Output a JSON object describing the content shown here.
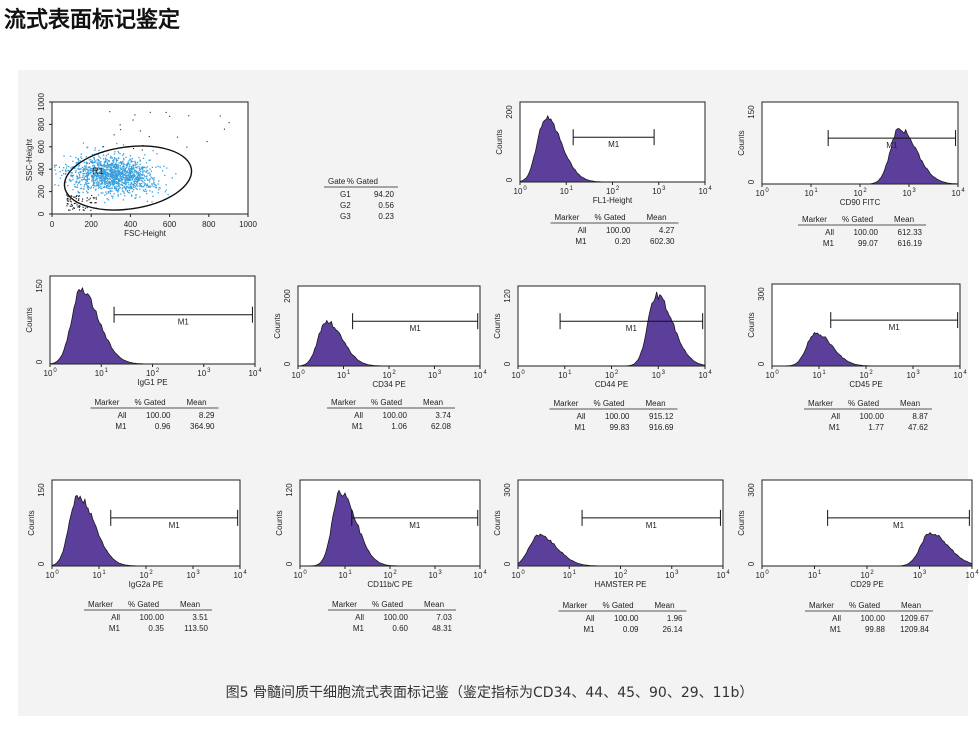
{
  "page": {
    "title": "流式表面标记鉴定",
    "caption": "图5 骨髓间质干细胞流式表面标记鉴（鉴定指标为CD34、44、45、90、29、11b）"
  },
  "colors": {
    "fill": "#5b3f9a",
    "outline": "#1a1a1a",
    "scatter": "#3aa0dd",
    "background": "#f3f3f4"
  },
  "scatter_panel": {
    "ylabel": "SSC-Height",
    "xlabel": "FSC-Height",
    "xticks": [
      "0",
      "200",
      "400",
      "600",
      "800",
      "1000"
    ],
    "yticks": [
      "0",
      "200",
      "400",
      "600",
      "800",
      "1000"
    ],
    "gate_label": "R1",
    "table": {
      "headers": [
        "Gate",
        "% Gated"
      ],
      "rows": [
        [
          "G1",
          "94.20"
        ],
        [
          "G2",
          "0.56"
        ],
        [
          "G3",
          "0.23"
        ]
      ]
    }
  },
  "histograms": [
    {
      "id": "fl1",
      "xlabel": "FL1-Height",
      "ylabel": "Counts",
      "ymax": "200",
      "peak": 0.55,
      "height": 0.88,
      "marker": "M1",
      "table": {
        "headers": [
          "Marker",
          "% Gated",
          "Mean"
        ],
        "rows": [
          [
            "All",
            "100.00",
            "4.27"
          ],
          [
            "M1",
            "0.20",
            "602.30"
          ]
        ]
      }
    },
    {
      "id": "cd90",
      "xlabel": "CD90 FITC",
      "ylabel": "Counts",
      "ymax": "150",
      "peak": 2.8,
      "height": 0.75,
      "marker": "M1",
      "table": {
        "headers": [
          "Marker",
          "% Gated",
          "Mean"
        ],
        "rows": [
          [
            "All",
            "100.00",
            "612.33"
          ],
          [
            "M1",
            "99.07",
            "616.19"
          ]
        ]
      }
    },
    {
      "id": "igg1",
      "xlabel": "IgG1 PE",
      "ylabel": "Counts",
      "ymax": "150",
      "peak": 0.6,
      "height": 0.92,
      "marker": "M1",
      "table": {
        "headers": [
          "Marker",
          "% Gated",
          "Mean"
        ],
        "rows": [
          [
            "All",
            "100.00",
            "8.29"
          ],
          [
            "M1",
            "0.96",
            "364.90"
          ]
        ]
      }
    },
    {
      "id": "cd34",
      "xlabel": "CD34 PE",
      "ylabel": "Counts",
      "ymax": "200",
      "peak": 0.62,
      "height": 0.62,
      "marker": "M1",
      "table": {
        "headers": [
          "Marker",
          "% Gated",
          "Mean"
        ],
        "rows": [
          [
            "All",
            "100.00",
            "3.74"
          ],
          [
            "M1",
            "1.06",
            "62.08"
          ]
        ]
      }
    },
    {
      "id": "cd44",
      "xlabel": "CD44 PE",
      "ylabel": "Counts",
      "ymax": "120",
      "peak": 2.96,
      "height": 0.98,
      "marker": "M1",
      "table": {
        "headers": [
          "Marker",
          "% Gated",
          "Mean"
        ],
        "rows": [
          [
            "All",
            "100.00",
            "915.12"
          ],
          [
            "M1",
            "99.83",
            "916.69"
          ]
        ]
      }
    },
    {
      "id": "cd45",
      "xlabel": "CD45 PE",
      "ylabel": "Counts",
      "ymax": "300",
      "peak": 0.92,
      "height": 0.45,
      "marker": "M1",
      "table": {
        "headers": [
          "Marker",
          "% Gated",
          "Mean"
        ],
        "rows": [
          [
            "All",
            "100.00",
            "8.87"
          ],
          [
            "M1",
            "1.77",
            "47.62"
          ]
        ]
      }
    },
    {
      "id": "igg2a",
      "xlabel": "IgG2a PE",
      "ylabel": "Counts",
      "ymax": "150",
      "peak": 0.55,
      "height": 0.9,
      "marker": "M1",
      "table": {
        "headers": [
          "Marker",
          "% Gated",
          "Mean"
        ],
        "rows": [
          [
            "All",
            "100.00",
            "3.51"
          ],
          [
            "M1",
            "0.35",
            "113.50"
          ]
        ]
      }
    },
    {
      "id": "cd11b",
      "xlabel": "CD11b/C PE",
      "ylabel": "Counts",
      "ymax": "120",
      "peak": 0.9,
      "height": 0.95,
      "marker": "M1",
      "table": {
        "headers": [
          "Marker",
          "% Gated",
          "Mean"
        ],
        "rows": [
          [
            "All",
            "100.00",
            "7.03"
          ],
          [
            "M1",
            "0.60",
            "48.31"
          ]
        ]
      }
    },
    {
      "id": "hamster",
      "xlabel": "HAMSTER PE",
      "ylabel": "Counts",
      "ymax": "300",
      "peak": 0.4,
      "height": 0.4,
      "marker": "M1",
      "table": {
        "headers": [
          "Marker",
          "% Gated",
          "Mean"
        ],
        "rows": [
          [
            "All",
            "100.00",
            "1.96"
          ],
          [
            "M1",
            "0.09",
            "26.14"
          ]
        ]
      }
    },
    {
      "id": "cd29",
      "xlabel": "CD29 PE",
      "ylabel": "Counts",
      "ymax": "300",
      "peak": 3.2,
      "height": 0.42,
      "marker": "M1",
      "table": {
        "headers": [
          "Marker",
          "% Gated",
          "Mean"
        ],
        "rows": [
          [
            "All",
            "100.00",
            "1209.67"
          ],
          [
            "M1",
            "99.88",
            "1209.84"
          ]
        ]
      }
    }
  ],
  "chart_data": {
    "type": "histogram-grid",
    "x_axis": "log scale 10^0 to 10^4",
    "panels": [
      {
        "name": "FL1-Height",
        "mean_all": 4.27,
        "m1_percent": 0.2,
        "m1_mean": 602.3
      },
      {
        "name": "CD90 FITC",
        "mean_all": 612.33,
        "m1_percent": 99.07,
        "m1_mean": 616.19
      },
      {
        "name": "IgG1 PE",
        "mean_all": 8.29,
        "m1_percent": 0.96,
        "m1_mean": 364.9
      },
      {
        "name": "CD34 PE",
        "mean_all": 3.74,
        "m1_percent": 1.06,
        "m1_mean": 62.08
      },
      {
        "name": "CD44 PE",
        "mean_all": 915.12,
        "m1_percent": 99.83,
        "m1_mean": 916.69
      },
      {
        "name": "CD45 PE",
        "mean_all": 8.87,
        "m1_percent": 1.77,
        "m1_mean": 47.62
      },
      {
        "name": "IgG2a PE",
        "mean_all": 3.51,
        "m1_percent": 0.35,
        "m1_mean": 113.5
      },
      {
        "name": "CD11b/C PE",
        "mean_all": 7.03,
        "m1_percent": 0.6,
        "m1_mean": 48.31
      },
      {
        "name": "HAMSTER PE",
        "mean_all": 1.96,
        "m1_percent": 0.09,
        "m1_mean": 26.14
      },
      {
        "name": "CD29 PE",
        "mean_all": 1209.67,
        "m1_percent": 99.88,
        "m1_mean": 1209.84
      }
    ],
    "gates": [
      {
        "name": "G1",
        "percent": 94.2
      },
      {
        "name": "G2",
        "percent": 0.56
      },
      {
        "name": "G3",
        "percent": 0.23
      }
    ]
  }
}
